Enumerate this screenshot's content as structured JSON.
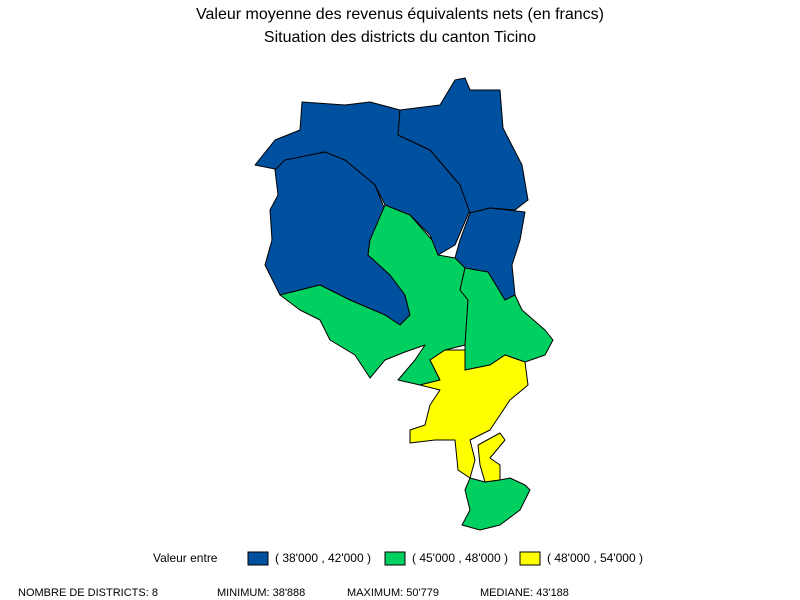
{
  "title": "Valeur moyenne des revenus équivalents nets (en francs)",
  "subtitle": "Situation des districts du canton Ticino",
  "legend": {
    "title": "Valeur entre",
    "items": [
      {
        "label": "( 38'000 , 42'000 )",
        "color": "#0050a0"
      },
      {
        "label": "( 45'000 , 48'000 )",
        "color": "#00d060"
      },
      {
        "label": "( 48'000 , 54'000 )",
        "color": "#ffff00"
      }
    ]
  },
  "footer": [
    "NOMBRE DE DISTRICTS: 8",
    "MINIMUM: 38'888",
    "MAXIMUM: 50'779",
    "MEDIANE: 43'188"
  ]
}
